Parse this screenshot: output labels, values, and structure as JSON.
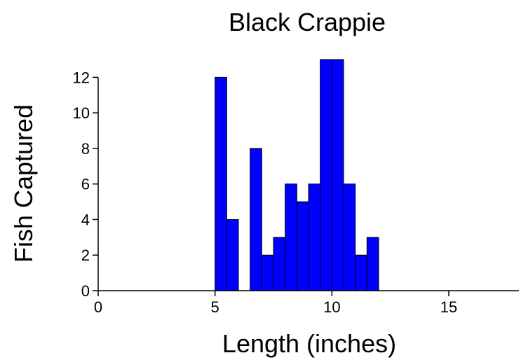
{
  "chart_data": {
    "type": "bar",
    "title": "Black Crappie",
    "xlabel": "Length (inches)",
    "ylabel": "Fish Captured",
    "xlim": [
      0,
      18
    ],
    "ylim": [
      0,
      13
    ],
    "xticks": [
      0,
      5,
      10,
      15
    ],
    "yticks": [
      0,
      2,
      4,
      6,
      8,
      10,
      12
    ],
    "bin_width": 0.5,
    "bar_color": "#0000ff",
    "grid": false,
    "bins": [
      {
        "start": 5.0,
        "end": 5.5,
        "count": 12
      },
      {
        "start": 5.5,
        "end": 6.0,
        "count": 4
      },
      {
        "start": 6.0,
        "end": 6.5,
        "count": 0
      },
      {
        "start": 6.5,
        "end": 7.0,
        "count": 8
      },
      {
        "start": 7.0,
        "end": 7.5,
        "count": 2
      },
      {
        "start": 7.5,
        "end": 8.0,
        "count": 3
      },
      {
        "start": 8.0,
        "end": 8.5,
        "count": 6
      },
      {
        "start": 8.5,
        "end": 9.0,
        "count": 5
      },
      {
        "start": 9.0,
        "end": 9.5,
        "count": 6
      },
      {
        "start": 9.5,
        "end": 10.0,
        "count": 13
      },
      {
        "start": 10.0,
        "end": 10.5,
        "count": 13
      },
      {
        "start": 10.5,
        "end": 11.0,
        "count": 6
      },
      {
        "start": 11.0,
        "end": 11.5,
        "count": 2
      },
      {
        "start": 11.5,
        "end": 12.0,
        "count": 3
      }
    ]
  }
}
